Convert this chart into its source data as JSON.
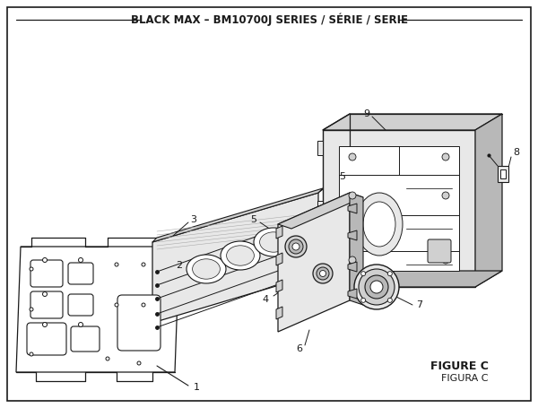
{
  "title": "BLACK MAX – BM10700J SERIES / SÉRIE / SERIE",
  "figure_label": "FIGURE C",
  "figure_label2": "FIGURA C",
  "bg": "#ffffff",
  "lc": "#1a1a1a",
  "gray1": "#d0d0d0",
  "gray2": "#e8e8e8",
  "gray3": "#b8b8b8"
}
